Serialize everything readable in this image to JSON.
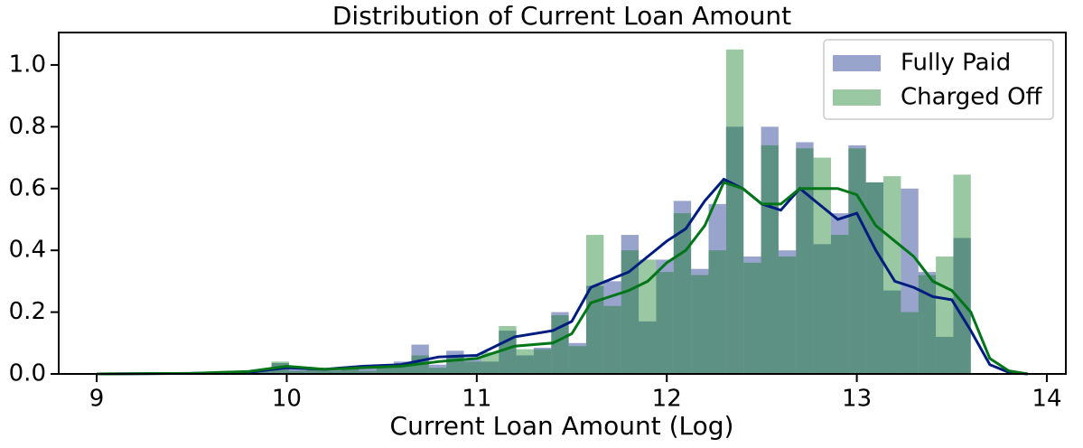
{
  "chart_data": {
    "type": "histogram",
    "title": "Distribution of Current Loan Amount",
    "x_label": "Current Loan Amount (Log)",
    "bins": [
      9,
      9.092,
      9.184,
      9.276,
      9.368,
      9.46,
      9.552,
      9.644,
      9.736,
      9.828,
      9.92,
      10.012,
      10.104,
      10.196,
      10.288,
      10.38,
      10.472,
      10.564,
      10.656,
      10.748,
      10.84,
      10.932,
      11.024,
      11.116,
      11.208,
      11.3,
      11.392,
      11.484,
      11.576,
      11.668,
      11.76,
      11.852,
      11.944,
      12.036,
      12.128,
      12.22,
      12.312,
      12.404,
      12.496,
      12.588,
      12.68,
      12.772,
      12.864,
      12.956,
      13.048,
      13.14,
      13.232,
      13.324,
      13.416,
      13.508,
      13.6
    ],
    "kde_x": [
      9.0,
      9.5,
      9.8,
      10.0,
      10.2,
      10.4,
      10.6,
      10.8,
      11.0,
      11.2,
      11.4,
      11.5,
      11.6,
      11.8,
      11.9,
      12.0,
      12.1,
      12.2,
      12.3,
      12.4,
      12.5,
      12.6,
      12.7,
      12.8,
      12.9,
      13.0,
      13.1,
      13.2,
      13.3,
      13.4,
      13.5,
      13.6,
      13.7,
      13.8,
      13.9
    ],
    "series": [
      {
        "name": "Fully Paid",
        "color": "#001c7f",
        "values": [
          0,
          0,
          0,
          0,
          0,
          0,
          0.003,
          0.003,
          0.005,
          0.01,
          0.035,
          0.02,
          0.02,
          0.015,
          0.02,
          0.02,
          0.02,
          0.04,
          0.095,
          0.03,
          0.075,
          0.05,
          0.04,
          0.14,
          0.06,
          0.085,
          0.2,
          0.1,
          0.285,
          0.3,
          0.45,
          0.17,
          0.37,
          0.56,
          0.34,
          0.55,
          0.8,
          0.38,
          0.8,
          0.4,
          0.75,
          0.42,
          0.52,
          0.74,
          0.62,
          0.27,
          0.6,
          0.33,
          0.12,
          0.44
        ],
        "kde": [
          0,
          0.002,
          0.005,
          0.02,
          0.015,
          0.025,
          0.03,
          0.055,
          0.06,
          0.12,
          0.14,
          0.17,
          0.28,
          0.33,
          0.38,
          0.43,
          0.47,
          0.56,
          0.63,
          0.6,
          0.55,
          0.53,
          0.6,
          0.55,
          0.5,
          0.52,
          0.4,
          0.3,
          0.28,
          0.25,
          0.24,
          0.14,
          0.03,
          0.005,
          0
        ]
      },
      {
        "name": "Charged Off",
        "color": "#017517",
        "values": [
          0,
          0,
          0,
          0,
          0,
          0,
          0,
          0.002,
          0.004,
          0.008,
          0.04,
          0.01,
          0.015,
          0.01,
          0.02,
          0.01,
          0.02,
          0.03,
          0.06,
          0.02,
          0.06,
          0.04,
          0.07,
          0.155,
          0.08,
          0.08,
          0.19,
          0.09,
          0.45,
          0.22,
          0.4,
          0.37,
          0.33,
          0.52,
          0.32,
          0.4,
          1.05,
          0.36,
          0.74,
          0.38,
          0.73,
          0.7,
          0.45,
          0.73,
          0.62,
          0.64,
          0.2,
          0.32,
          0.38,
          0.645
        ],
        "kde": [
          0,
          0.002,
          0.008,
          0.025,
          0.015,
          0.02,
          0.025,
          0.04,
          0.05,
          0.09,
          0.1,
          0.13,
          0.23,
          0.27,
          0.3,
          0.36,
          0.4,
          0.48,
          0.62,
          0.6,
          0.55,
          0.55,
          0.6,
          0.6,
          0.6,
          0.58,
          0.48,
          0.43,
          0.38,
          0.3,
          0.27,
          0.2,
          0.05,
          0.01,
          0
        ]
      }
    ],
    "xlim": [
      8.8,
      14.1
    ],
    "ylim": [
      0,
      1.105
    ],
    "xticks": [
      9,
      10,
      11,
      12,
      13,
      14
    ],
    "yticks": [
      {
        "value": 0,
        "label": "0.0"
      },
      0.2,
      0.4,
      0.6,
      0.8,
      {
        "value": 1,
        "label": "1.0"
      }
    ],
    "legend": "upper right"
  }
}
